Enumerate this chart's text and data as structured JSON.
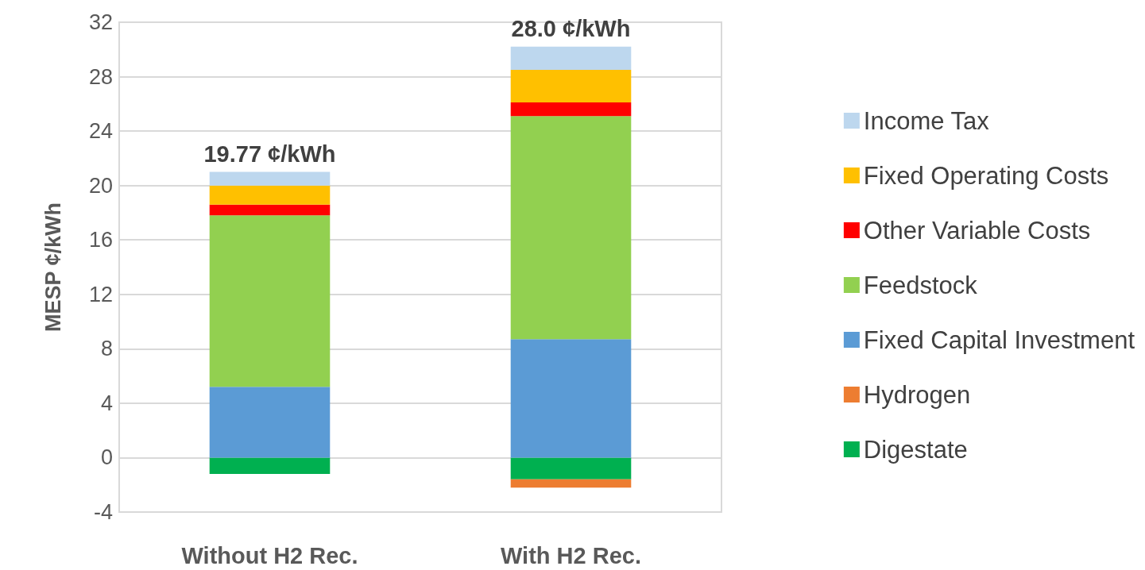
{
  "chart_data": {
    "type": "bar",
    "stacked": true,
    "ylabel": "MESP ¢/kWh",
    "categories": [
      "Without H2 Rec.",
      "With H2 Rec."
    ],
    "series": [
      {
        "name": "Digestate",
        "color": "#00b050",
        "values": [
          -1.2,
          -1.6
        ]
      },
      {
        "name": "Hydrogen",
        "color": "#ed7d31",
        "values": [
          0,
          -0.6
        ]
      },
      {
        "name": "Fixed Capital Investment",
        "color": "#5b9bd5",
        "values": [
          5.2,
          8.7
        ]
      },
      {
        "name": "Feedstock",
        "color": "#92d050",
        "values": [
          12.6,
          16.4
        ]
      },
      {
        "name": "Other Variable Costs",
        "color": "#ff0000",
        "values": [
          0.8,
          1.0
        ]
      },
      {
        "name": "Fixed Operating Costs",
        "color": "#ffc000",
        "values": [
          1.4,
          2.4
        ]
      },
      {
        "name": "Income Tax",
        "color": "#bdd7ee",
        "values": [
          1.0,
          1.7
        ]
      }
    ],
    "totals": [
      "19.77 ¢/kWh",
      "28.0 ¢/kWh"
    ],
    "ylim": [
      -4,
      32
    ],
    "yticks": [
      -4,
      0,
      4,
      8,
      12,
      16,
      20,
      24,
      28,
      32
    ],
    "grid": "y",
    "legend": "right"
  }
}
